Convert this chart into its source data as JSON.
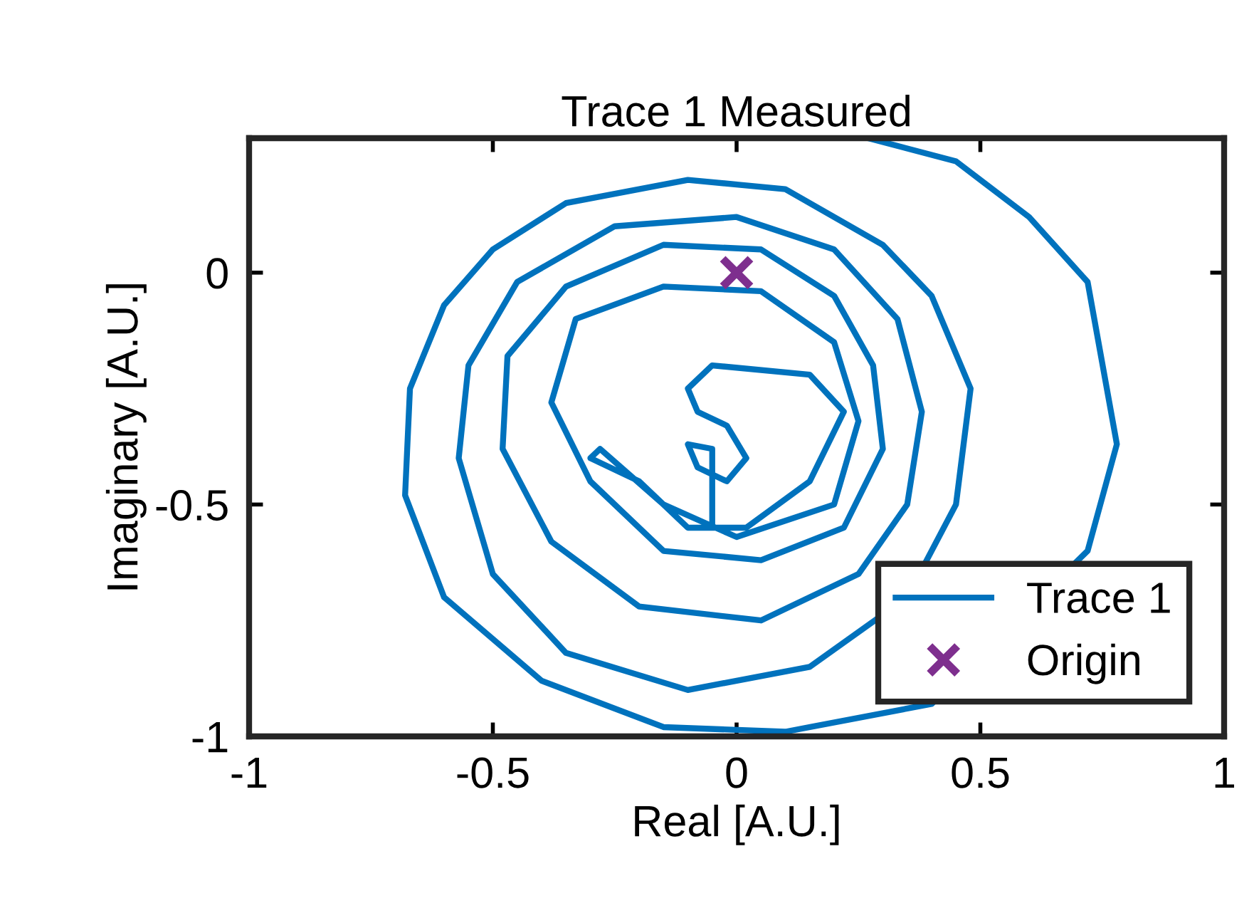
{
  "chart_data": {
    "type": "line",
    "title": "Trace 1 Measured",
    "xlabel": "Real [A.U.]",
    "ylabel": "Imaginary [A.U.]",
    "xlim": [
      -1,
      1
    ],
    "ylim": [
      -1,
      0.29
    ],
    "xticks": [
      -1,
      -0.5,
      0,
      0.5,
      1
    ],
    "yticks": [
      -1,
      -0.5,
      0
    ],
    "grid": false,
    "legend": "bottom right",
    "series": [
      {
        "name": "Trace 1",
        "color": "#0072bd",
        "marker": "none",
        "line_style": "solid",
        "x": [
          0.27,
          0.45,
          0.6,
          0.72,
          0.78,
          0.72,
          0.4,
          0.1,
          -0.15,
          -0.4,
          -0.6,
          -0.68,
          -0.67,
          -0.6,
          -0.5,
          -0.35,
          -0.1,
          0.1,
          0.3,
          0.4,
          0.48,
          0.45,
          0.35,
          0.15,
          -0.1,
          -0.35,
          -0.5,
          -0.57,
          -0.55,
          -0.45,
          -0.25,
          0,
          0.2,
          0.33,
          0.38,
          0.35,
          0.25,
          0.05,
          -0.2,
          -0.38,
          -0.48,
          -0.47,
          -0.35,
          -0.15,
          0.05,
          0.2,
          0.28,
          0.3,
          0.22,
          0.05,
          -0.15,
          -0.3,
          -0.38,
          -0.33,
          -0.15,
          0.05,
          0.2,
          0.25,
          0.2,
          0.0,
          -0.15,
          -0.28,
          -0.3,
          -0.2,
          -0.1,
          0.02,
          0.15,
          0.22,
          0.15,
          -0.05,
          -0.1,
          -0.08,
          -0.02,
          0.02,
          -0.02,
          -0.08,
          -0.1,
          -0.05,
          -0.05
        ],
        "values": [
          0.29,
          0.24,
          0.12,
          -0.02,
          -0.37,
          -0.6,
          -0.93,
          -0.99,
          -0.98,
          -0.88,
          -0.7,
          -0.48,
          -0.25,
          -0.07,
          0.05,
          0.15,
          0.2,
          0.18,
          0.06,
          -0.05,
          -0.25,
          -0.5,
          -0.7,
          -0.85,
          -0.9,
          -0.82,
          -0.65,
          -0.4,
          -0.2,
          -0.02,
          0.1,
          0.12,
          0.05,
          -0.1,
          -0.3,
          -0.5,
          -0.65,
          -0.75,
          -0.72,
          -0.58,
          -0.38,
          -0.18,
          -0.03,
          0.06,
          0.05,
          -0.05,
          -0.2,
          -0.38,
          -0.55,
          -0.62,
          -0.6,
          -0.45,
          -0.28,
          -0.1,
          -0.03,
          -0.04,
          -0.15,
          -0.32,
          -0.5,
          -0.57,
          -0.5,
          -0.38,
          -0.4,
          -0.45,
          -0.55,
          -0.55,
          -0.45,
          -0.3,
          -0.22,
          -0.2,
          -0.25,
          -0.3,
          -0.33,
          -0.4,
          -0.45,
          -0.42,
          -0.37,
          -0.38,
          -0.55
        ]
      },
      {
        "name": "Origin",
        "type": "scatter",
        "color": "#7e2f8e",
        "marker": "cross",
        "x": [
          0
        ],
        "values": [
          0
        ]
      }
    ]
  }
}
